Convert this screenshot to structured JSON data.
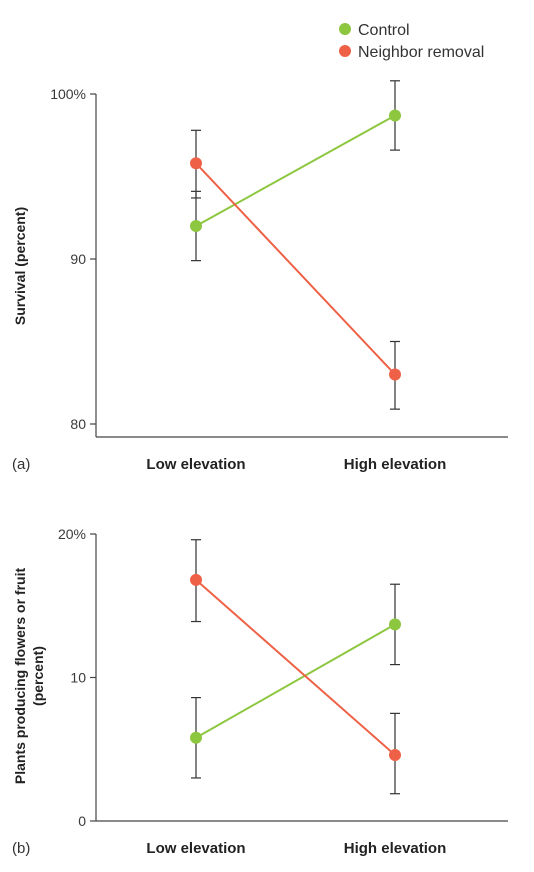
{
  "legend": {
    "entries": [
      {
        "label": "Control",
        "color": "#8dc63f"
      },
      {
        "label": "Neighbor removal",
        "color": "#ee6146"
      }
    ]
  },
  "chart_data": [
    {
      "type": "line",
      "panel_label": "(a)",
      "ylabel": "Survival (percent)",
      "categories": [
        "Low elevation",
        "High elevation"
      ],
      "ylim": [
        79,
        100.5
      ],
      "yticks": [
        80,
        90,
        100
      ],
      "ytick_labels": [
        "80",
        "90",
        "100%"
      ],
      "legend_position": "top-right",
      "grid": false,
      "series": [
        {
          "name": "Control",
          "color": "#8dc63f",
          "values": [
            92.0,
            98.7
          ],
          "err_low": [
            89.9,
            96.6
          ],
          "err_high": [
            94.1,
            100.8
          ]
        },
        {
          "name": "Neighbor removal",
          "color": "#ee6146",
          "values": [
            95.8,
            83.0
          ],
          "err_low": [
            93.7,
            80.9
          ],
          "err_high": [
            97.8,
            85.0
          ]
        }
      ]
    },
    {
      "type": "line",
      "panel_label": "(b)",
      "ylabel": "Plants producing flowers or fruit (percent)",
      "ylabel_lines": [
        "Plants producing  flowers or fruit",
        "(percent)"
      ],
      "categories": [
        "Low elevation",
        "High elevation"
      ],
      "ylim": [
        0,
        20
      ],
      "yticks": [
        0,
        10,
        20
      ],
      "ytick_labels": [
        "0",
        "10",
        "20%"
      ],
      "grid": false,
      "series": [
        {
          "name": "Control",
          "color": "#8dc63f",
          "values": [
            5.8,
            13.7
          ],
          "err_low": [
            3.0,
            10.9
          ],
          "err_high": [
            8.6,
            16.5
          ]
        },
        {
          "name": "Neighbor removal",
          "color": "#ee6146",
          "values": [
            16.8,
            4.6
          ],
          "err_low": [
            13.9,
            1.9
          ],
          "err_high": [
            19.6,
            7.5
          ]
        }
      ]
    }
  ]
}
